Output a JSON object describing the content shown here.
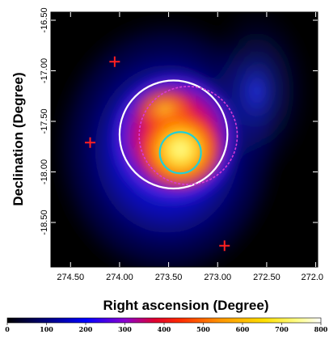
{
  "chart_data": {
    "type": "heatmap",
    "title": "",
    "xlabel": "Right ascension (Degree)",
    "ylabel": "Declination (Degree)",
    "xlim": [
      274.7,
      271.98
    ],
    "ylim": [
      -18.94,
      -16.42
    ],
    "x_ticks": [
      {
        "value": 274.5,
        "label": "274.50"
      },
      {
        "value": 274.0,
        "label": "274.00"
      },
      {
        "value": 273.5,
        "label": "273.50"
      },
      {
        "value": 273.0,
        "label": "273.00"
      },
      {
        "value": 272.5,
        "label": "272.50"
      },
      {
        "value": 272.0,
        "label": "272.0"
      }
    ],
    "y_ticks": [
      {
        "value": -16.5,
        "label": "-16.50"
      },
      {
        "value": -17.0,
        "label": "-17.00"
      },
      {
        "value": -17.5,
        "label": "-17.50"
      },
      {
        "value": -18.0,
        "label": "-18.00"
      },
      {
        "value": -18.5,
        "label": "-18.50"
      }
    ],
    "colorbar": {
      "min": 0,
      "max": 800,
      "tick_labels": [
        "0",
        "100",
        "200",
        "300",
        "400",
        "500",
        "600",
        "700",
        "800"
      ]
    },
    "circles": [
      {
        "name": "white",
        "ra": 273.45,
        "dec": -17.63,
        "radius_deg": 0.55,
        "color": "#ffffff",
        "style": "solid"
      },
      {
        "name": "magenta",
        "ra": 273.3,
        "dec": -17.64,
        "radius_deg": 0.5,
        "color": "#d83ad8",
        "style": "dashed"
      },
      {
        "name": "cyan",
        "ra": 273.38,
        "dec": -17.81,
        "radius_deg": 0.21,
        "color": "#20d0d8",
        "style": "solid"
      }
    ],
    "markers": [
      {
        "ra": 274.05,
        "dec": -16.91,
        "color": "#ff2020",
        "symbol": "plus"
      },
      {
        "ra": 274.3,
        "dec": -17.71,
        "color": "#ff2020",
        "symbol": "plus"
      },
      {
        "ra": 272.93,
        "dec": -18.73,
        "color": "#ff2020",
        "symbol": "plus"
      }
    ]
  }
}
